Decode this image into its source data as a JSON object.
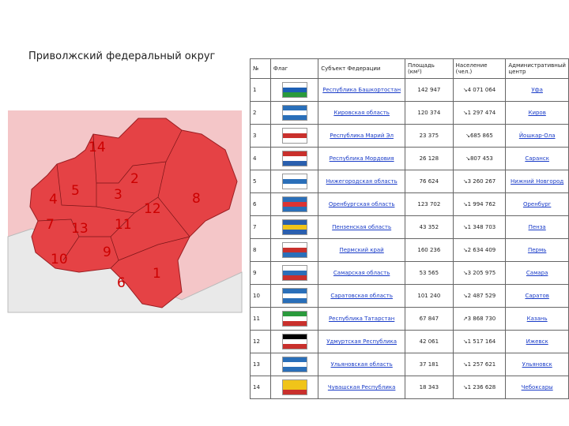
{
  "header": {
    "title": "Приволжский федеральный округ"
  },
  "map": {
    "labels": [
      "1",
      "2",
      "3",
      "4",
      "5",
      "6",
      "7",
      "8",
      "9",
      "10",
      "11",
      "12",
      "13",
      "14"
    ]
  },
  "table": {
    "columns": [
      "№",
      "Флаг",
      "Субъект Федерации",
      "Площадь (км²)",
      "Население (чел.)",
      "Административный центр"
    ],
    "rows": [
      [
        "1",
        "Республика Башкортостан",
        "142 947",
        "↘4 071 064",
        "Уфа"
      ],
      [
        "2",
        "Кировская область",
        "120 374",
        "↘1 297 474",
        "Киров"
      ],
      [
        "3",
        "Республика Марий Эл",
        "23 375",
        "↘685 865",
        "Йошкар-Ола"
      ],
      [
        "4",
        "Республика Мордовия",
        "26 128",
        "↘807 453",
        "Саранск"
      ],
      [
        "5",
        "Нижегородская область",
        "76 624",
        "↘3 260 267",
        "Нижний Новгород"
      ],
      [
        "6",
        "Оренбургская область",
        "123 702",
        "↘1 994 762",
        "Оренбург"
      ],
      [
        "7",
        "Пензенская область",
        "43 352",
        "↘1 348 703",
        "Пенза"
      ],
      [
        "8",
        "Пермский край",
        "160 236",
        "↘2 634 409",
        "Пермь"
      ],
      [
        "9",
        "Самарская область",
        "53 565",
        "↘3 205 975",
        "Самара"
      ],
      [
        "10",
        "Саратовская область",
        "101 240",
        "↘2 487 529",
        "Саратов"
      ],
      [
        "11",
        "Республика Татарстан",
        "67 847",
        "↗3 868 730",
        "Казань"
      ],
      [
        "12",
        "Удмуртская Республика",
        "42 061",
        "↘1 517 164",
        "Ижевск"
      ],
      [
        "13",
        "Ульяновская область",
        "37 181",
        "↘1 257 621",
        "Ульяновск"
      ],
      [
        "14",
        "Чувашская Республика",
        "18 343",
        "↘1 236 628",
        "Чебоксары"
      ]
    ]
  }
}
